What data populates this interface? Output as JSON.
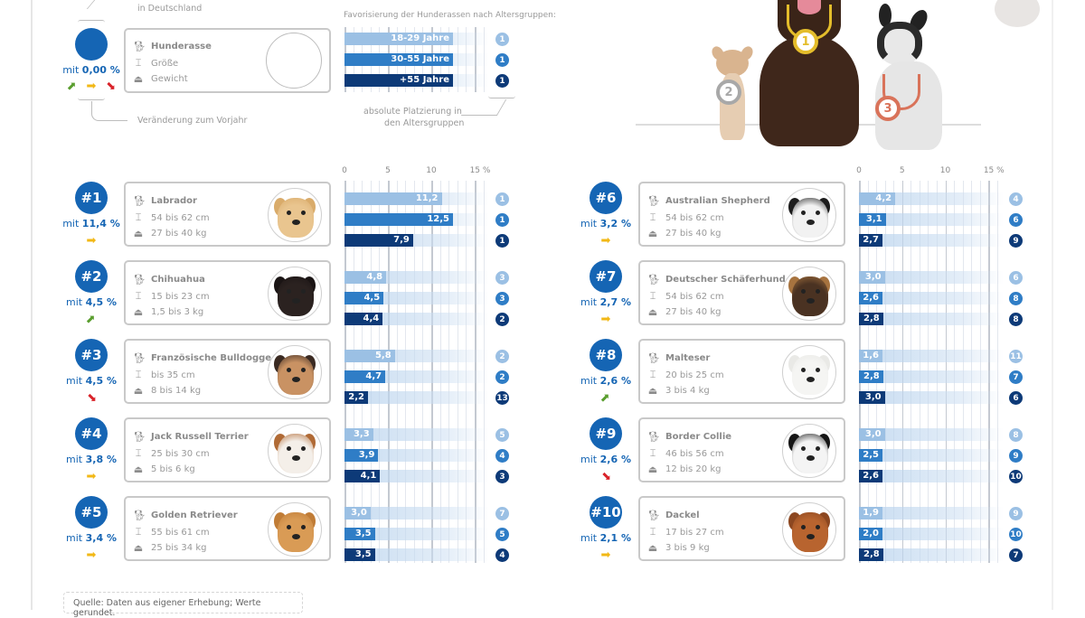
{
  "legend": {
    "top_note": "in Deutschland",
    "share_prefix": "mit",
    "share_value": "0,00 %",
    "change_note": "Veränderung zum Vorjahr",
    "card": {
      "breed": "Hunderasse",
      "size": "Größe",
      "weight": "Gewicht"
    },
    "age_title": "Favorisierung der Hunderassen nach Altersgruppen:",
    "age_groups": [
      "18-29 Jahre",
      "30-55 Jahre",
      "+55 Jahre"
    ],
    "age_ranks": [
      "1",
      "1",
      "1"
    ],
    "rank_note_1": "absolute Platzierung in",
    "rank_note_2": "den Altersgruppen"
  },
  "medals": [
    "1",
    "2",
    "3"
  ],
  "colors": {
    "primary": "#1565b4",
    "age_18_29": "#9bc0e4",
    "age_30_55": "#2f7dc6",
    "age_55_plus": "#0d3a78",
    "trend_up": "#5a9e2f",
    "trend_same": "#f2b816",
    "trend_down": "#d9232a"
  },
  "axis": {
    "ticks": [
      "0",
      "5",
      "10",
      "15 %"
    ]
  },
  "breeds": [
    {
      "pos": "#1",
      "share": "11,4 %",
      "trend": "same",
      "name": "Labrador",
      "size": "54 bis 62 cm",
      "weight": "27 bis 40 kg",
      "photo": "labrador"
    },
    {
      "pos": "#2",
      "share": "4,5 %",
      "trend": "up",
      "name": "Chihuahua",
      "size": "15 bis 23 cm",
      "weight": "1,5 bis 3 kg",
      "photo": "chihuahua"
    },
    {
      "pos": "#3",
      "share": "4,5 %",
      "trend": "down",
      "name": "Französische Bulldogge",
      "size": "bis 35 cm",
      "weight": "8 bis 14 kg",
      "photo": "french-bulldog"
    },
    {
      "pos": "#4",
      "share": "3,8 %",
      "trend": "same",
      "name": "Jack Russell Terrier",
      "size": "25 bis 30 cm",
      "weight": "5 bis 6 kg",
      "photo": "jack-russell"
    },
    {
      "pos": "#5",
      "share": "3,4 %",
      "trend": "same",
      "name": "Golden Retriever",
      "size": "55 bis 61 cm",
      "weight": "25 bis 34 kg",
      "photo": "golden-retriever"
    },
    {
      "pos": "#6",
      "share": "3,2 %",
      "trend": "same",
      "name": "Australian Shepherd",
      "size": "54 bis 62 cm",
      "weight": "27 bis 40 kg",
      "photo": "australian-shepherd"
    },
    {
      "pos": "#7",
      "share": "2,7 %",
      "trend": "same",
      "name": "Deutscher Schäferhund",
      "size": "54 bis 62 cm",
      "weight": "27 bis 40 kg",
      "photo": "german-shepherd"
    },
    {
      "pos": "#8",
      "share": "2,6 %",
      "trend": "up",
      "name": "Malteser",
      "size": "20 bis 25 cm",
      "weight": "3 bis 4 kg",
      "photo": "maltese"
    },
    {
      "pos": "#9",
      "share": "2,6 %",
      "trend": "down",
      "name": "Border Collie",
      "size": "46 bis 56 cm",
      "weight": "12 bis 20 kg",
      "photo": "border-collie"
    },
    {
      "pos": "#10",
      "share": "2,1 %",
      "trend": "same",
      "name": "Dackel",
      "size": "17 bis 27 cm",
      "weight": "3 bis 9 kg",
      "photo": "dachshund"
    }
  ],
  "chart_data": {
    "type": "bar",
    "orientation": "horizontal",
    "categories": [
      "Labrador",
      "Chihuahua",
      "Französische Bulldogge",
      "Jack Russell Terrier",
      "Golden Retriever",
      "Australian Shepherd",
      "Deutscher Schäferhund",
      "Malteser",
      "Border Collie",
      "Dackel"
    ],
    "series": [
      {
        "name": "18-29 Jahre",
        "values": [
          11.2,
          4.8,
          5.8,
          3.3,
          3.0,
          4.2,
          3.0,
          1.6,
          3.0,
          1.9
        ],
        "ranks": [
          1,
          3,
          2,
          5,
          7,
          4,
          6,
          11,
          8,
          9
        ]
      },
      {
        "name": "30-55 Jahre",
        "values": [
          12.5,
          4.5,
          4.7,
          3.9,
          3.5,
          3.1,
          2.6,
          2.8,
          2.5,
          2.0
        ],
        "ranks": [
          1,
          3,
          2,
          4,
          5,
          6,
          8,
          7,
          9,
          10
        ]
      },
      {
        "name": "+55 Jahre",
        "values": [
          7.9,
          4.4,
          2.2,
          4.1,
          3.5,
          2.7,
          2.8,
          3.0,
          2.6,
          2.8
        ],
        "ranks": [
          1,
          2,
          13,
          3,
          4,
          9,
          8,
          6,
          10,
          7
        ]
      }
    ],
    "title": "Favorisierung der Hunderassen nach Altersgruppen:",
    "xlim": [
      0,
      15
    ],
    "xticks": [
      "0",
      "5",
      "10",
      "15 %"
    ],
    "grid": true
  },
  "source": "Quelle: Daten aus eigener Erhebung; Werte gerundet."
}
